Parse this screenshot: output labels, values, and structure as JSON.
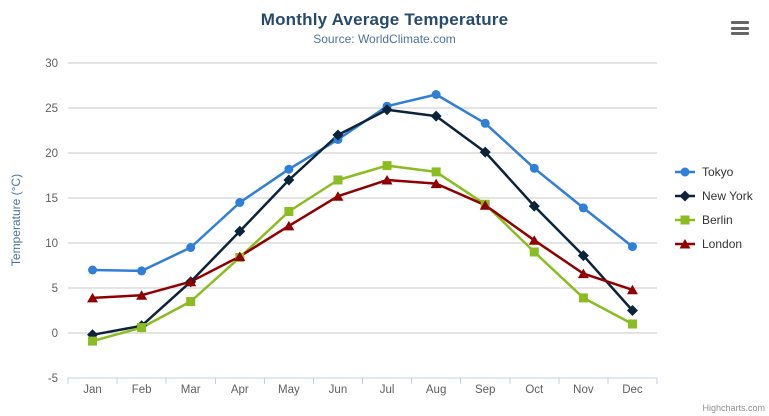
{
  "chart_data": {
    "type": "line",
    "title": "Monthly Average Temperature",
    "subtitle": "Source: WorldClimate.com",
    "xlabel": "",
    "ylabel": "Temperature (°C)",
    "ylim": [
      -5,
      30
    ],
    "yticks": [
      -5,
      0,
      5,
      10,
      15,
      20,
      25,
      30
    ],
    "categories": [
      "Jan",
      "Feb",
      "Mar",
      "Apr",
      "May",
      "Jun",
      "Jul",
      "Aug",
      "Sep",
      "Oct",
      "Nov",
      "Dec"
    ],
    "grid": true,
    "legend_position": "right",
    "series": [
      {
        "name": "Tokyo",
        "color": "#2f7ed8",
        "marker": "circle",
        "values": [
          7.0,
          6.9,
          9.5,
          14.5,
          18.2,
          21.5,
          25.2,
          26.5,
          23.3,
          18.3,
          13.9,
          9.6
        ]
      },
      {
        "name": "New York",
        "color": "#0d233a",
        "marker": "diamond",
        "values": [
          -0.2,
          0.8,
          5.7,
          11.3,
          17.0,
          22.0,
          24.8,
          24.1,
          20.1,
          14.1,
          8.6,
          2.5
        ]
      },
      {
        "name": "Berlin",
        "color": "#8bbc21",
        "marker": "square",
        "values": [
          -0.9,
          0.6,
          3.5,
          8.4,
          13.5,
          17.0,
          18.6,
          17.9,
          14.3,
          9.0,
          3.9,
          1.0
        ]
      },
      {
        "name": "London",
        "color": "#910000",
        "marker": "triangle",
        "values": [
          3.9,
          4.2,
          5.7,
          8.5,
          11.9,
          15.2,
          17.0,
          16.6,
          14.2,
          10.3,
          6.6,
          4.8
        ]
      }
    ]
  },
  "credit": "Highcharts.com",
  "icons": {
    "export_menu": "hamburger-icon"
  },
  "colors": {
    "title": "#274b6d",
    "subtitle": "#4d759e",
    "axis_title": "#4d759e",
    "axis_labels": "#606060",
    "gridline": "#c8c8c8",
    "axis_line": "#c0d0e0",
    "legend_text": "#333333",
    "credit_text": "#909090",
    "burger": "#666666"
  }
}
